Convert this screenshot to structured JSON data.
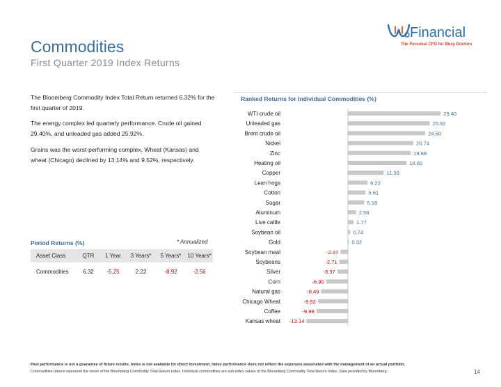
{
  "header": {
    "title": "Commodities",
    "subtitle": "First Quarter 2019 Index Returns"
  },
  "logo": {
    "name": "Financial",
    "tagline": "The Personal CFO for Busy Doctors"
  },
  "commentary": [
    "The Bloomberg Commodity Index Total Return returned 6.32% for the first quarter of 2019.",
    "The energy complex led quarterly performance. Crude oil gained 29.40%, and unleaded gas added 25.92%.",
    "Grains was the worst-performing complex. Wheat (Kansas) and wheat (Chicago) declined by 13.14% and 9.52%, respectively."
  ],
  "period_returns": {
    "title": "Period Returns (%)",
    "note": "* Annualized",
    "headers": [
      "Asset Class",
      "QTR",
      "1 Year",
      "3 Years*",
      "5 Years*",
      "10 Years*"
    ],
    "row": [
      "Commodities",
      "6.32",
      "-5.25",
      "2.22",
      "-8.92",
      "-2.56"
    ]
  },
  "chart_data": {
    "type": "bar",
    "orientation": "horizontal",
    "title": "Ranked Returns for Individual Commodities (%)",
    "categories": [
      "WTI crude oil",
      "Unleaded gas",
      "Brent crude oil",
      "Nickel",
      "Zinc",
      "Heating oil",
      "Copper",
      "Lean hogs",
      "Cotton",
      "Sugar",
      "Aluminum",
      "Live cattle",
      "Soybean oil",
      "Gold",
      "Soybean meal",
      "Soybeans",
      "Silver",
      "Corn",
      "Natural gas",
      "Chicago Wheat",
      "Coffee",
      "Kansas wheat"
    ],
    "values": [
      29.4,
      25.92,
      24.5,
      20.74,
      19.88,
      18.6,
      11.33,
      6.22,
      5.61,
      5.18,
      2.58,
      1.77,
      0.74,
      0.32,
      -2.37,
      -2.71,
      -3.37,
      -6.9,
      -8.49,
      -9.52,
      -9.99,
      -13.14
    ],
    "labels": [
      "29.40",
      "25.92",
      "24.50",
      "20.74",
      "19.88",
      "18.60",
      "11.33",
      "6.22",
      "5.61",
      "5.18",
      "2.58",
      "1.77",
      "0.74",
      "0.32",
      "-2.37",
      "-2.71",
      "-3.37",
      "-6.90",
      "-8.49",
      "-9.52",
      "-9.99",
      "-13.14"
    ],
    "bar_color": "#c8c8c8",
    "positive_label_color": "#3b6d96",
    "negative_label_color": "#c00000",
    "xlim": [
      -14,
      30
    ],
    "grid": false,
    "legend": "none"
  },
  "footer": {
    "disclaimer": "Past performance is not a guarantee of future results. Index is not available for direct investment. Index performance does not reflect the expenses associated with the management of an actual portfolio.",
    "source": "Commodities returns represent the return of the Bloomberg Commodity Total Return Index. Individual commodities are sub-index values of the Bloomberg Commodity Total Return Index. Data provided by Bloomberg.",
    "page_number": "14"
  },
  "colors": {
    "accent": "#3b6d96",
    "negative": "#c00000",
    "logo_red": "#c44a32"
  }
}
